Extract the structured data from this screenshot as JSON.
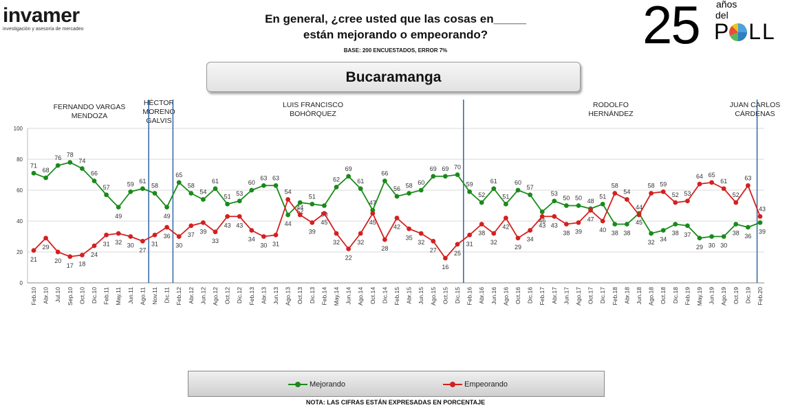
{
  "logo": {
    "name": "invamer",
    "tagline": "investigación y asesoría de mercadeo"
  },
  "header": {
    "title_line1": "En general, ¿cree usted que las cosas en_____",
    "title_line2": "están mejorando o empeorando?",
    "base": "BASE: 200 ENCUESTADOS, ERROR 7%"
  },
  "badge": {
    "number": "25",
    "line1": "años",
    "line2": "del",
    "word": "POLL"
  },
  "city": "Bucaramanga",
  "periods": [
    {
      "label": "FERNANDO VARGAS\nMENDOZA"
    },
    {
      "label": "HÉCTOR\nMORENO\nGALVIS"
    },
    {
      "label": "LUIS FRANCISCO\nBOHÓRQUEZ"
    },
    {
      "label": "RODOLFO\nHERNÁNDEZ"
    },
    {
      "label": "JUAN CARLOS\nCÁRDENAS"
    }
  ],
  "colors": {
    "mejorando": "#1a8a1a",
    "empeorando": "#d42020",
    "divider": "#3a6ea8",
    "grid": "#d9d9d9"
  },
  "legend": {
    "mejorando": "Mejorando",
    "empeorando": "Empeorando"
  },
  "note": "NOTA: LAS CIFRAS ESTÁN EXPRESADAS EN PORCENTAJE",
  "chart_data": {
    "type": "line",
    "title": "Bucaramanga",
    "ylim": [
      0,
      100
    ],
    "yticks": [
      0,
      20,
      40,
      60,
      80,
      100
    ],
    "categories": [
      "Feb.10",
      "Abr.10",
      "Jul.10",
      "Sep.10",
      "Oct.10",
      "Dic.10",
      "Feb.11",
      "May.11",
      "Jun.11",
      "Ago.11",
      "Nov.11",
      "Dic.11",
      "Feb.12",
      "Abr.12",
      "Jun.12",
      "Ago.12",
      "Oct.12",
      "Dic.12",
      "Feb.13",
      "Abr.13",
      "Jun.13",
      "Ago.13",
      "Oct.13",
      "Dic.13",
      "Feb.14",
      "May.14",
      "Jun.14",
      "Ago.14",
      "Oct.14",
      "Dic.14",
      "Feb.15",
      "Abr.15",
      "Jun.15",
      "Ago.15",
      "Oct.15",
      "Dic.15",
      "Feb.16",
      "Abr.16",
      "Jun.16",
      "Ago.16",
      "Oct.16",
      "Dic.16",
      "Feb.17",
      "Abr.17",
      "Jun.17",
      "Ago.17",
      "Oct.17",
      "Dic.17",
      "Feb.18",
      "Abr.18",
      "Jun.18",
      "Ago.18",
      "Oct.18",
      "Dic.18",
      "Feb.19",
      "May.19",
      "Jun.19",
      "Ago.19",
      "Oct.19",
      "Dic.19",
      "Feb.20"
    ],
    "series": [
      {
        "name": "Mejorando",
        "values": [
          71,
          68,
          76,
          78,
          74,
          66,
          57,
          49,
          59,
          61,
          58,
          49,
          65,
          58,
          54,
          61,
          51,
          53,
          60,
          63,
          63,
          44,
          52,
          51,
          50,
          62,
          69,
          61,
          47,
          66,
          56,
          58,
          60,
          69,
          69,
          70,
          59,
          52,
          61,
          51,
          60,
          57,
          46,
          53,
          50,
          50,
          48,
          51,
          38,
          38,
          45,
          32,
          34,
          38,
          37,
          29,
          30,
          30,
          38,
          36,
          39
        ],
        "label_pos": [
          "a",
          "a",
          "a",
          "a",
          "a",
          "a",
          "a",
          "b",
          "a",
          "a",
          "a",
          "b",
          "a",
          "a",
          "a",
          "a",
          "a",
          "a",
          "a",
          "a",
          "a",
          "b",
          "b",
          "a",
          "b",
          "a",
          "a",
          "a",
          "a",
          "a",
          "a",
          "a",
          "a",
          "a",
          "a",
          "a",
          "a",
          "a",
          "a",
          "a",
          "a",
          "a",
          "b",
          "a",
          "a",
          "a",
          "a",
          "a",
          "b",
          "b",
          "b",
          "b",
          "b",
          "b",
          "b",
          "b",
          "b",
          "b",
          "b",
          "b",
          "b"
        ]
      },
      {
        "name": "Empeorando",
        "values": [
          21,
          29,
          20,
          17,
          18,
          24,
          31,
          32,
          30,
          27,
          31,
          36,
          30,
          37,
          39,
          33,
          43,
          43,
          34,
          30,
          31,
          54,
          44,
          39,
          45,
          32,
          22,
          32,
          45,
          28,
          42,
          35,
          32,
          27,
          16,
          25,
          31,
          38,
          32,
          42,
          29,
          34,
          43,
          43,
          38,
          39,
          47,
          40,
          58,
          54,
          44,
          58,
          59,
          52,
          53,
          64,
          65,
          61,
          52,
          63,
          43
        ],
        "label_pos": [
          "b",
          "b",
          "b",
          "b",
          "b",
          "b",
          "b",
          "b",
          "b",
          "b",
          "b",
          "b",
          "b",
          "b",
          "b",
          "b",
          "b",
          "b",
          "b",
          "b",
          "b",
          "a",
          "a",
          "b",
          "b",
          "b",
          "b",
          "b",
          "b",
          "b",
          "b",
          "b",
          "b",
          "b",
          "b",
          "b",
          "b",
          "b",
          "b",
          "b",
          "b",
          "b",
          "b",
          "b",
          "b",
          "b",
          "b",
          "b",
          "a",
          "a",
          "a",
          "a",
          "a",
          "a",
          "a",
          "a",
          "a",
          "a",
          "a",
          "a",
          "a"
        ]
      }
    ],
    "dividers_after_index": [
      9,
      11,
      35,
      59
    ],
    "legend_position": "bottom"
  }
}
